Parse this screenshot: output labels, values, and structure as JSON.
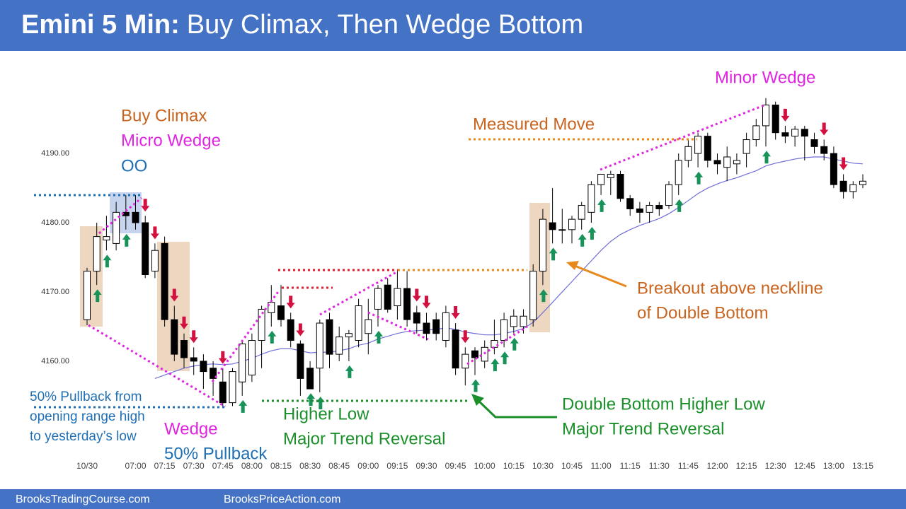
{
  "header": {
    "title": "Emini 5 Min:",
    "subtitle": "Buy Climax, Then Wedge Bottom"
  },
  "footer": {
    "left": "BrooksTradingCourse.com",
    "right": "BrooksPriceAction.com"
  },
  "chart_data": {
    "type": "candlestick",
    "categories": [
      "10/30",
      null,
      null,
      null,
      null,
      "07:00",
      null,
      null,
      "07:15",
      null,
      null,
      "07:30",
      null,
      null,
      "07:45",
      null,
      null,
      "08:00",
      null,
      null,
      "08:15",
      null,
      null,
      "08:30",
      null,
      null,
      "08:45",
      null,
      null,
      "09:00",
      null,
      null,
      "09:15",
      null,
      null,
      "09:30",
      null,
      null,
      "09:45",
      null,
      null,
      "10:00",
      null,
      null,
      "10:15",
      null,
      null,
      "10:30",
      null,
      null,
      "10:45",
      null,
      null,
      "11:00",
      null,
      null,
      "11:15",
      null,
      null,
      "11:30",
      null,
      null,
      "11:45",
      null,
      null,
      "12:00",
      null,
      null,
      "12:15",
      null,
      null,
      "12:30",
      null,
      null,
      "12:45",
      null,
      null,
      "13:00",
      null,
      null,
      "13:15"
    ],
    "open": [
      4166,
      4173,
      4177.5,
      4177,
      4181.5,
      4181.5,
      4180,
      4173,
      4177,
      4166,
      4163,
      4160.5,
      4160,
      4159,
      4157,
      4154,
      4157,
      4158,
      4163,
      4167,
      4168,
      4166,
      4162.5,
      4159,
      4159,
      4166,
      4161,
      4163.5,
      4163,
      4164,
      4167.5,
      4171,
      4168,
      4170.5,
      4167,
      4165.5,
      4166,
      4163,
      4164.5,
      4159,
      4161.5,
      4160,
      4162,
      4163,
      4165,
      4165,
      4166,
      4173,
      4180,
      4179,
      4179,
      4180.5,
      4181.5,
      4185.5,
      4186.5,
      4187,
      4183.5,
      4182,
      4181.5,
      4182.5,
      4182.5,
      4185.5,
      4189,
      4190,
      4192.5,
      4189,
      4188,
      4188.5,
      4190,
      4192,
      4194,
      4197,
      4193,
      4192.5,
      4193.5,
      4192,
      4191,
      4190,
      4186,
      4184.5,
      4185.5
    ],
    "high": [
      4173.5,
      4180,
      4181,
      4183,
      4184,
      4184,
      4181,
      4177,
      4178,
      4168,
      4164,
      4162,
      4161,
      4160,
      4159,
      4159,
      4163,
      4164,
      4168,
      4171,
      4171,
      4167,
      4163,
      4160,
      4166,
      4167,
      4165,
      4164.5,
      4169,
      4169,
      4171,
      4172,
      4173,
      4173,
      4168,
      4167,
      4167,
      4168,
      4165.5,
      4162,
      4162,
      4163,
      4166,
      4167,
      4167.5,
      4167.5,
      4174,
      4182,
      4185,
      4182,
      4181,
      4183,
      4186,
      4187,
      4187.5,
      4187.5,
      4184,
      4183,
      4183,
      4183,
      4186,
      4190,
      4192,
      4193,
      4193,
      4190,
      4191,
      4190,
      4193,
      4195,
      4198,
      4197.5,
      4194,
      4194,
      4194,
      4193,
      4192,
      4191,
      4187,
      4186,
      4187
    ],
    "low": [
      4165.2,
      4171,
      4176,
      4176,
      4179,
      4179,
      4172,
      4172,
      4165,
      4160,
      4159,
      4158,
      4156,
      4155,
      4153.5,
      4153.5,
      4155,
      4157,
      4159,
      4165,
      4165,
      4162,
      4155,
      4156,
      4155.5,
      4159,
      4160,
      4160,
      4162,
      4161,
      4165,
      4167,
      4166,
      4165,
      4164,
      4163,
      4163,
      4162,
      4158,
      4156.5,
      4158,
      4159,
      4161,
      4162,
      4164,
      4164,
      4165,
      4171,
      4177,
      4177,
      4177,
      4179,
      4180,
      4184,
      4184,
      4183,
      4181,
      4180,
      4180,
      4181,
      4182,
      4184,
      4188,
      4188,
      4188,
      4187,
      4186,
      4187,
      4188,
      4191,
      4191,
      4192,
      4191.5,
      4191,
      4189,
      4190,
      4189,
      4185,
      4183.5,
      4183.5,
      4185
    ],
    "close": [
      4173,
      4178,
      4178,
      4181.5,
      4181,
      4180,
      4172.5,
      4176,
      4166,
      4161,
      4160.5,
      4160,
      4158.5,
      4157.5,
      4154,
      4158.5,
      4162.5,
      4163,
      4167.5,
      4168.5,
      4166,
      4163,
      4157.5,
      4156,
      4165.5,
      4161,
      4163.5,
      4164,
      4168,
      4166,
      4170.5,
      4167.5,
      4170.5,
      4166,
      4165.5,
      4164,
      4164,
      4167,
      4159,
      4161,
      4160.5,
      4162,
      4163,
      4166,
      4166.5,
      4166.5,
      4173,
      4180.5,
      4179,
      4179,
      4180.5,
      4182.5,
      4185.5,
      4187,
      4187,
      4183.5,
      4182,
      4181.5,
      4182.5,
      4182,
      4185.5,
      4189,
      4191,
      4192.5,
      4189,
      4188.5,
      4189.5,
      4189,
      4192,
      4194,
      4197,
      4193,
      4192.5,
      4193.5,
      4192.5,
      4191,
      4190,
      4185.5,
      4184.5,
      4185.5,
      4186
    ],
    "ma": {
      "color": "#6f6fd8",
      "values": [
        null,
        null,
        null,
        null,
        null,
        null,
        null,
        4157.5,
        4158,
        4158.5,
        4159,
        4159.3,
        4159.5,
        4159.6,
        4159.5,
        4159.6,
        4160,
        4160.4,
        4161,
        4161.5,
        4161.8,
        4161.8,
        4161.5,
        4161.2,
        4161.3,
        4161.3,
        4161.5,
        4161.8,
        4162.3,
        4162.6,
        4163.2,
        4163.6,
        4164,
        4164.3,
        4164.4,
        4164.5,
        4164.6,
        4164.8,
        4164.6,
        4164.2,
        4164,
        4163.8,
        4163.8,
        4164,
        4164.3,
        4164.7,
        4165.6,
        4167,
        4168.5,
        4170,
        4171.5,
        4173,
        4174.5,
        4176,
        4177.3,
        4178.3,
        4179,
        4179.6,
        4180.1,
        4180.6,
        4181.3,
        4182.2,
        4183.2,
        4184.2,
        4185,
        4185.6,
        4186.1,
        4186.5,
        4187,
        4187.5,
        4188.2,
        4188.6,
        4188.9,
        4189.2,
        4189.4,
        4189.5,
        4189.5,
        4189.2,
        4188.9,
        4188.6,
        4188.5
      ]
    },
    "ylim": [
      4146,
      4204
    ],
    "yticks": [
      {
        "value": 4160,
        "label": "4160.00"
      },
      {
        "value": 4170,
        "label": "4170.00"
      },
      {
        "value": 4180,
        "label": "4180.00"
      },
      {
        "value": 4190,
        "label": "4190.00"
      }
    ],
    "annotations": [
      "Buy Climax",
      "Micro Wedge",
      "OO",
      "50% Pullback from",
      "opening range high",
      "to yesterday’s low",
      "Wedge",
      "50% Pullback",
      "Higher Low",
      "Major Trend Reversal",
      "Measured Move",
      "Minor Wedge",
      "Breakout above neckline",
      "of Double Bottom",
      "Double Bottom Higher Low",
      "Major Trend Reversal"
    ]
  }
}
